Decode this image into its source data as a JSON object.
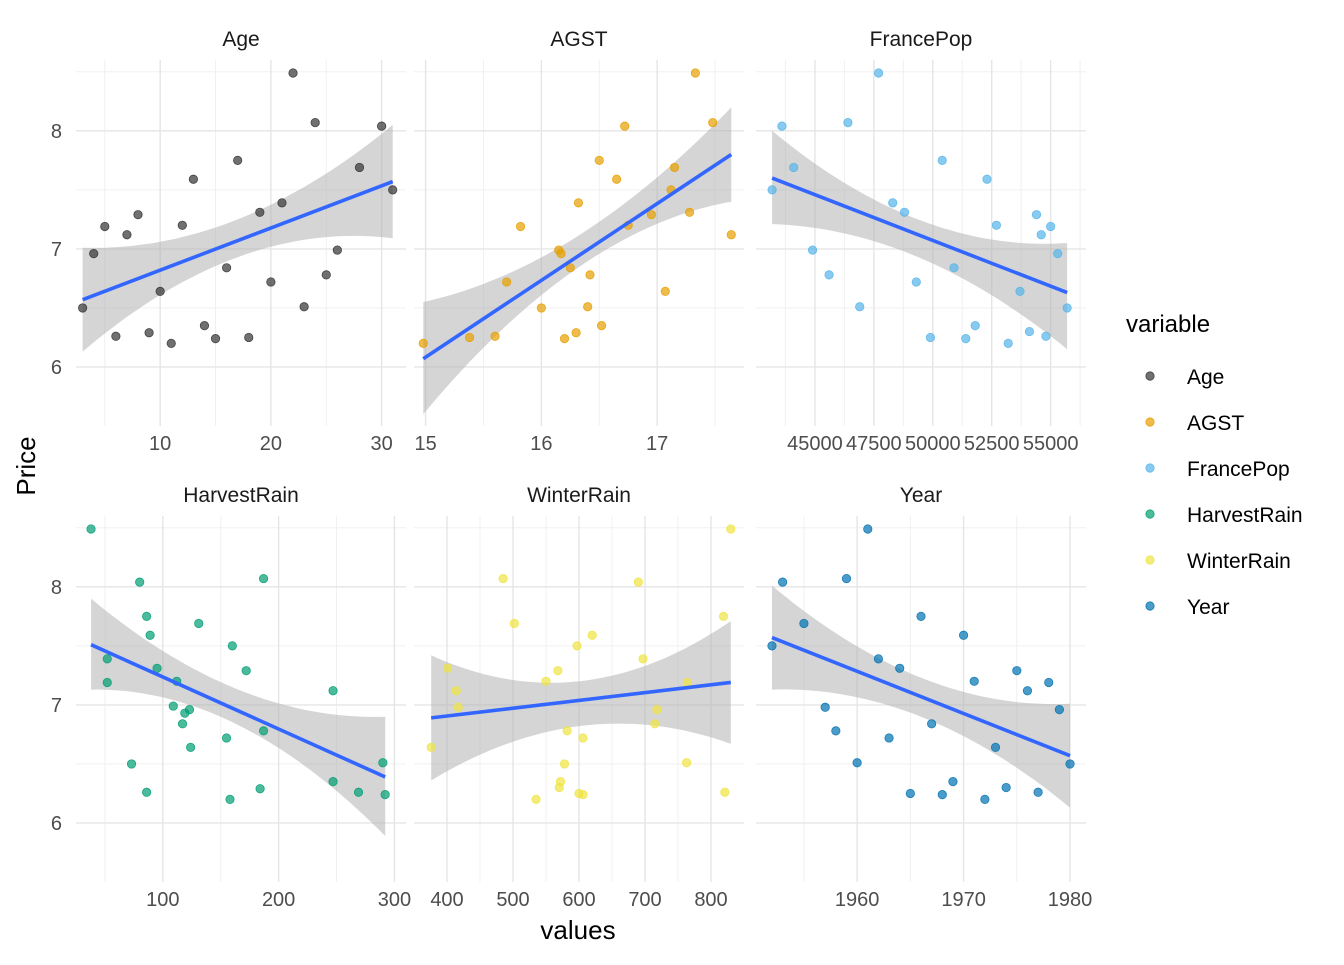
{
  "chart_data": {
    "type": "scatter",
    "layout": "facet_wrap 2 rows x 3 columns, free x scales",
    "xlabel": "values",
    "ylabel": "Price",
    "ylim": [
      5.5,
      8.6
    ],
    "y_ticks": [
      "6",
      "7",
      "8"
    ],
    "y_tick_values": [
      6,
      7,
      8
    ],
    "legend": {
      "title": "variable",
      "placement": "right"
    },
    "grid": true,
    "smooth": {
      "method": "lm",
      "line_color": "#3366FF",
      "band_color": "#B3B3B3"
    },
    "panels": [
      {
        "name": "Age",
        "color": "#333333",
        "xlim": [
          2.4,
          32.2
        ],
        "x_ticks": [
          "10",
          "20",
          "30"
        ],
        "x_tick_values": [
          10,
          20,
          30
        ],
        "points": [
          [
            3,
            6.5
          ],
          [
            4,
            6.96
          ],
          [
            5,
            7.19
          ],
          [
            6,
            6.26
          ],
          [
            7,
            7.12
          ],
          [
            8,
            7.29
          ],
          [
            9,
            6.29
          ],
          [
            10,
            6.64
          ],
          [
            11,
            6.2
          ],
          [
            12,
            7.2
          ],
          [
            13,
            7.59
          ],
          [
            14,
            6.35
          ],
          [
            15,
            6.24
          ],
          [
            16,
            6.84
          ],
          [
            17,
            7.75
          ],
          [
            18,
            6.25
          ],
          [
            19,
            7.31
          ],
          [
            20,
            6.72
          ],
          [
            21,
            7.39
          ],
          [
            22,
            8.49
          ],
          [
            23,
            6.51
          ],
          [
            24,
            8.07
          ],
          [
            25,
            6.78
          ],
          [
            26,
            6.99
          ],
          [
            28,
            7.69
          ],
          [
            30,
            8.04
          ],
          [
            31,
            7.5
          ]
        ],
        "fit": [
          [
            3,
            6.57
          ],
          [
            31,
            7.57
          ]
        ],
        "band_lo": [
          [
            3,
            6.13
          ],
          [
            17,
            6.93
          ],
          [
            31,
            7.09
          ]
        ],
        "band_hi": [
          [
            3,
            7.01
          ],
          [
            17,
            7.25
          ],
          [
            31,
            8.05
          ]
        ]
      },
      {
        "name": "AGST",
        "color": "#E69F00",
        "xlim": [
          14.9,
          17.75
        ],
        "x_ticks": [
          "15",
          "16",
          "17"
        ],
        "x_tick_values": [
          15,
          16,
          17
        ],
        "points": [
          [
            14.98,
            6.2
          ],
          [
            15.38,
            6.25
          ],
          [
            15.6,
            6.26
          ],
          [
            15.7,
            6.72
          ],
          [
            15.82,
            7.19
          ],
          [
            16.0,
            6.5
          ],
          [
            16.15,
            6.99
          ],
          [
            16.17,
            6.96
          ],
          [
            16.2,
            6.24
          ],
          [
            16.25,
            6.84
          ],
          [
            16.3,
            6.29
          ],
          [
            16.32,
            7.39
          ],
          [
            16.4,
            6.51
          ],
          [
            16.42,
            6.78
          ],
          [
            16.5,
            7.75
          ],
          [
            16.52,
            6.35
          ],
          [
            16.65,
            7.59
          ],
          [
            16.72,
            8.04
          ],
          [
            16.75,
            7.2
          ],
          [
            16.95,
            7.29
          ],
          [
            17.07,
            6.64
          ],
          [
            17.12,
            7.5
          ],
          [
            17.15,
            7.69
          ],
          [
            17.28,
            7.31
          ],
          [
            17.33,
            8.49
          ],
          [
            17.48,
            8.07
          ],
          [
            17.64,
            7.12
          ]
        ],
        "fit": [
          [
            14.98,
            6.07
          ],
          [
            17.64,
            7.8
          ]
        ],
        "band_lo": [
          [
            14.98,
            5.6
          ],
          [
            16.3,
            6.83
          ],
          [
            17.64,
            7.4
          ]
        ],
        "band_hi": [
          [
            14.98,
            6.55
          ],
          [
            16.3,
            7.1
          ],
          [
            17.64,
            8.2
          ]
        ]
      },
      {
        "name": "FrancePop",
        "color": "#56B4E9",
        "xlim": [
          42500,
          56500
        ],
        "x_ticks": [
          "45000",
          "47500",
          "50000",
          "52500",
          "55000"
        ],
        "x_tick_values": [
          45000,
          47500,
          50000,
          52500,
          55000
        ],
        "points": [
          [
            43183,
            7.5
          ],
          [
            43600,
            8.04
          ],
          [
            44100,
            7.69
          ],
          [
            44900,
            6.99
          ],
          [
            45600,
            6.78
          ],
          [
            46400,
            8.07
          ],
          [
            46900,
            6.51
          ],
          [
            47700,
            8.49
          ],
          [
            48300,
            7.39
          ],
          [
            49300,
            6.72
          ],
          [
            48800,
            7.31
          ],
          [
            49900,
            6.25
          ],
          [
            50400,
            7.75
          ],
          [
            50900,
            6.84
          ],
          [
            51400,
            6.24
          ],
          [
            51800,
            6.35
          ],
          [
            52300,
            7.59
          ],
          [
            52700,
            7.2
          ],
          [
            53200,
            6.2
          ],
          [
            53700,
            6.64
          ],
          [
            54100,
            6.3
          ],
          [
            54400,
            7.29
          ],
          [
            54600,
            7.12
          ],
          [
            54800,
            6.26
          ],
          [
            55000,
            7.19
          ],
          [
            55300,
            6.96
          ],
          [
            55700,
            6.5
          ]
        ],
        "fit": [
          [
            43183,
            7.6
          ],
          [
            55700,
            6.63
          ]
        ],
        "band_lo": [
          [
            43183,
            7.21
          ],
          [
            49500,
            6.92
          ],
          [
            55700,
            6.15
          ]
        ],
        "band_hi": [
          [
            43183,
            8.0
          ],
          [
            49500,
            7.24
          ],
          [
            55700,
            7.05
          ]
        ]
      },
      {
        "name": "HarvestRain",
        "color": "#009E73",
        "xlim": [
          25,
          310
        ],
        "x_ticks": [
          "100",
          "200",
          "300"
        ],
        "x_tick_values": [
          100,
          200,
          300
        ],
        "points": [
          [
            38,
            8.49
          ],
          [
            52,
            7.39
          ],
          [
            52,
            7.19
          ],
          [
            73,
            6.5
          ],
          [
            80,
            8.04
          ],
          [
            86,
            7.75
          ],
          [
            86,
            6.26
          ],
          [
            89,
            7.59
          ],
          [
            95,
            7.31
          ],
          [
            109,
            6.99
          ],
          [
            112,
            7.2
          ],
          [
            117,
            6.84
          ],
          [
            119,
            6.93
          ],
          [
            123,
            6.96
          ],
          [
            124,
            6.64
          ],
          [
            131,
            7.69
          ],
          [
            155,
            6.72
          ],
          [
            158,
            6.2
          ],
          [
            160,
            7.5
          ],
          [
            172,
            7.29
          ],
          [
            184,
            6.29
          ],
          [
            187,
            8.07
          ],
          [
            187,
            6.78
          ],
          [
            247,
            7.12
          ],
          [
            247,
            6.35
          ],
          [
            269,
            6.26
          ],
          [
            290,
            6.51
          ],
          [
            292,
            6.24
          ]
        ],
        "fit": [
          [
            38,
            7.51
          ],
          [
            292,
            6.39
          ]
        ],
        "band_lo": [
          [
            38,
            7.13
          ],
          [
            165,
            6.83
          ],
          [
            292,
            5.89
          ]
        ],
        "band_hi": [
          [
            38,
            7.9
          ],
          [
            165,
            7.13
          ],
          [
            292,
            6.9
          ]
        ]
      },
      {
        "name": "WinterRain",
        "color": "#F0E442",
        "xlim": [
          350,
          850
        ],
        "x_ticks": [
          "400",
          "500",
          "600",
          "700",
          "800"
        ],
        "x_tick_values": [
          400,
          500,
          600,
          700,
          800
        ],
        "points": [
          [
            376,
            6.64
          ],
          [
            401,
            7.31
          ],
          [
            414,
            7.12
          ],
          [
            417,
            6.98
          ],
          [
            485,
            8.07
          ],
          [
            502,
            7.69
          ],
          [
            535,
            6.2
          ],
          [
            550,
            7.2
          ],
          [
            568,
            7.29
          ],
          [
            570,
            6.3
          ],
          [
            572,
            6.35
          ],
          [
            578,
            6.5
          ],
          [
            582,
            6.78
          ],
          [
            597,
            7.5
          ],
          [
            600,
            6.25
          ],
          [
            606,
            6.24
          ],
          [
            606,
            6.72
          ],
          [
            620,
            7.59
          ],
          [
            690,
            8.04
          ],
          [
            697,
            7.39
          ],
          [
            715,
            6.84
          ],
          [
            718,
            6.96
          ],
          [
            763,
            6.51
          ],
          [
            764,
            7.19
          ],
          [
            819,
            7.75
          ],
          [
            821,
            6.26
          ],
          [
            830,
            8.49
          ]
        ],
        "fit": [
          [
            376,
            6.89
          ],
          [
            830,
            7.19
          ]
        ],
        "band_lo": [
          [
            376,
            6.36
          ],
          [
            600,
            6.82
          ],
          [
            830,
            6.67
          ]
        ],
        "band_hi": [
          [
            376,
            7.42
          ],
          [
            600,
            7.2
          ],
          [
            830,
            7.71
          ]
        ]
      },
      {
        "name": "Year",
        "color": "#0072B2",
        "xlim": [
          1950.5,
          1981.5
        ],
        "x_ticks": [
          "1960",
          "1970",
          "1980"
        ],
        "x_tick_values": [
          1960,
          1970,
          1980
        ],
        "points": [
          [
            1952,
            7.5
          ],
          [
            1953,
            8.04
          ],
          [
            1955,
            7.69
          ],
          [
            1957,
            6.98
          ],
          [
            1958,
            6.78
          ],
          [
            1959,
            8.07
          ],
          [
            1960,
            6.51
          ],
          [
            1961,
            8.49
          ],
          [
            1962,
            7.39
          ],
          [
            1963,
            6.72
          ],
          [
            1964,
            7.31
          ],
          [
            1965,
            6.25
          ],
          [
            1966,
            7.75
          ],
          [
            1967,
            6.84
          ],
          [
            1968,
            6.24
          ],
          [
            1969,
            6.35
          ],
          [
            1970,
            7.59
          ],
          [
            1971,
            7.2
          ],
          [
            1972,
            6.2
          ],
          [
            1973,
            6.64
          ],
          [
            1974,
            6.3
          ],
          [
            1975,
            7.29
          ],
          [
            1976,
            7.12
          ],
          [
            1977,
            6.26
          ],
          [
            1978,
            7.19
          ],
          [
            1979,
            6.96
          ],
          [
            1980,
            6.5
          ]
        ],
        "fit": [
          [
            1952,
            7.57
          ],
          [
            1980,
            6.57
          ]
        ],
        "band_lo": [
          [
            1952,
            7.13
          ],
          [
            1966,
            6.9
          ],
          [
            1980,
            6.13
          ]
        ],
        "band_hi": [
          [
            1952,
            8.01
          ],
          [
            1966,
            7.23
          ],
          [
            1980,
            7.01
          ]
        ]
      }
    ]
  }
}
